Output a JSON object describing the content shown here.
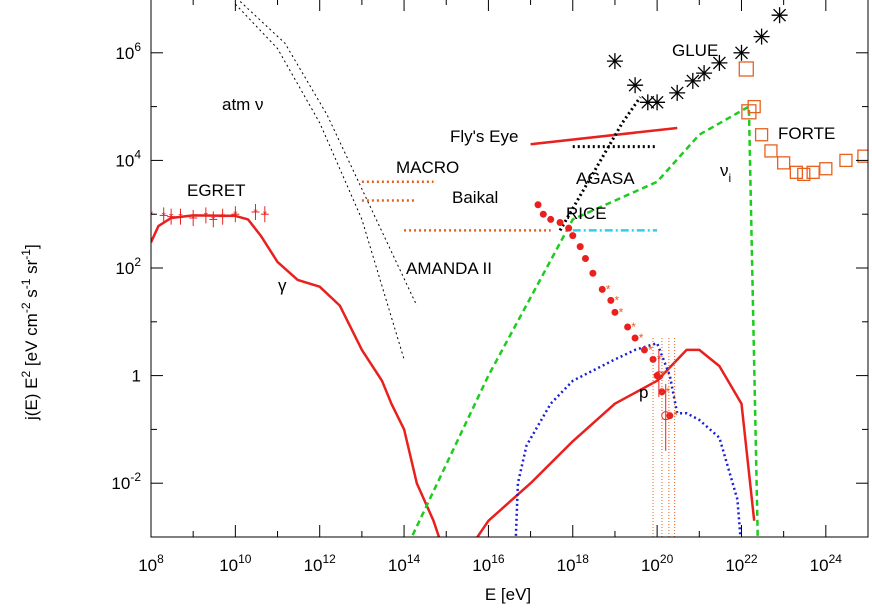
{
  "chart_data": {
    "type": "line",
    "title": "",
    "xlabel": "E [eV]",
    "ylabel": "j(E) E^2 [eV cm^-2 s^-1 sr^-1]",
    "xscale": "log",
    "yscale": "log",
    "xlim": [
      100000000.0,
      1e+25
    ],
    "ylim": [
      0.001,
      10000000
    ],
    "grid": false,
    "x_ticks": [
      {
        "base": "10",
        "exp": "8",
        "value": 100000000.0
      },
      {
        "base": "10",
        "exp": "10",
        "value": 10000000000.0
      },
      {
        "base": "10",
        "exp": "12",
        "value": 1000000000000.0
      },
      {
        "base": "10",
        "exp": "14",
        "value": 100000000000000.0
      },
      {
        "base": "10",
        "exp": "16",
        "value": 1e+16
      },
      {
        "base": "10",
        "exp": "18",
        "value": 1e+18
      },
      {
        "base": "10",
        "exp": "20",
        "value": 1e+20
      },
      {
        "base": "10",
        "exp": "22",
        "value": 1e+22
      },
      {
        "base": "10",
        "exp": "24",
        "value": 1e+24
      }
    ],
    "y_ticks": [
      {
        "base": "10",
        "exp": "-2",
        "value": 0.01
      },
      {
        "base": "1",
        "exp": "",
        "value": 1
      },
      {
        "base": "10",
        "exp": "2",
        "value": 100
      },
      {
        "base": "10",
        "exp": "4",
        "value": 10000
      },
      {
        "base": "10",
        "exp": "6",
        "value": 1000000
      }
    ],
    "series": [
      {
        "label": "γ",
        "style": "solid",
        "color": "#e8201e",
        "points": [
          [
            100000000.0,
            300
          ],
          [
            150000000.0,
            600
          ],
          [
            300000000.0,
            850
          ],
          [
            1000000000.0,
            950
          ],
          [
            10000000000.0,
            930
          ],
          [
            20000000000.0,
            800
          ],
          [
            40000000000.0,
            400
          ],
          [
            100000000000.0,
            130
          ],
          [
            300000000000.0,
            60
          ],
          [
            1000000000000.0,
            45
          ],
          [
            3000000000000.0,
            20
          ],
          [
            10000000000000.0,
            3
          ],
          [
            30000000000000.0,
            0.8
          ],
          [
            50000000000000.0,
            0.3
          ],
          [
            100000000000000.0,
            0.1
          ],
          [
            200000000000000.0,
            0.01
          ],
          [
            500000000000000.0,
            0.002
          ],
          [
            1000000000000000.0,
            0.0004
          ],
          [
            3000000000000000.0,
            0.0005
          ],
          [
            1e+16,
            0.002
          ],
          [
            1e+17,
            0.01
          ],
          [
            1e+18,
            0.06
          ],
          [
            1e+19,
            0.3
          ],
          [
            1e+20,
            0.8
          ],
          [
            5e+20,
            3
          ],
          [
            1e+21,
            3
          ],
          [
            3e+21,
            1.5
          ],
          [
            1e+22,
            0.3
          ],
          [
            2e+22,
            0.002
          ]
        ]
      },
      {
        "label": "p",
        "style": "dotted",
        "color": "#1a1fd6",
        "points": [
          [
            4e+16,
            0.0001
          ],
          [
            5e+16,
            0.01
          ],
          [
            8e+16,
            0.05
          ],
          [
            3e+17,
            0.3
          ],
          [
            1e+18,
            0.8
          ],
          [
            1e+19,
            2
          ],
          [
            3e+19,
            3
          ],
          [
            1e+20,
            4
          ],
          [
            2e+20,
            1
          ],
          [
            3e+20,
            0.2
          ],
          [
            5e+20,
            0.2
          ],
          [
            1e+21,
            0.15
          ],
          [
            3e+21,
            0.07
          ],
          [
            8e+21,
            0.005
          ],
          [
            1.2e+22,
            0.0001
          ]
        ]
      },
      {
        "label": "ν",
        "style": "dashed",
        "color": "#1ecb1e",
        "points": [
          [
            100000000000000.0,
            0.0005
          ],
          [
            1e+16,
            1
          ],
          [
            1e+18,
            800
          ],
          [
            1e+20,
            4000
          ],
          [
            1e+21,
            30000
          ],
          [
            1.5e+22,
            100000
          ],
          [
            2.5e+22,
            0.0003
          ]
        ]
      },
      {
        "label": "atm ν",
        "style": "dotted",
        "color": "#000000",
        "points": [
          [
            10000000000.0,
            8000000
          ],
          [
            100000000000.0,
            1200000
          ],
          [
            1000000000000.0,
            50000
          ],
          [
            10000000000000.0,
            800
          ],
          [
            100000000000000.0,
            2
          ]
        ]
      },
      {
        "label": "atm ν",
        "style": "dotted",
        "color": "#000000",
        "points": [
          [
            13000000000.0,
            9000000
          ],
          [
            150000000000.0,
            1500000
          ],
          [
            1500000000000.0,
            70000
          ],
          [
            15000000000000.0,
            1500
          ],
          [
            200000000000000.0,
            20
          ]
        ]
      }
    ],
    "limits": [
      {
        "label": "MACRO",
        "style": "dotted",
        "color": "#e8601e",
        "x": [
          10000000000000.0,
          500000000000000.0
        ],
        "y": 4000
      },
      {
        "label": "Baikal",
        "style": "dotted",
        "color": "#e8601e",
        "x": [
          10000000000000.0,
          200000000000000.0
        ],
        "y": 1800
      },
      {
        "label": "AMANDA II",
        "style": "dotted",
        "color": "#e8601e",
        "x": [
          100000000000000.0,
          3e+17
        ],
        "y": 500
      },
      {
        "label": "RICE",
        "style": "dash-dot",
        "color": "#2fd0e8",
        "x": [
          1e+18,
          1e+20
        ],
        "y": 500
      },
      {
        "label": "Fly's Eye",
        "style": "solid",
        "color": "#e8201e",
        "x": [
          1e+17,
          3e+20
        ],
        "y": [
          20000,
          40000
        ]
      },
      {
        "label": "AGASA",
        "style": "dotted",
        "color": "#000000",
        "x": [
          1e+18,
          1e+20
        ],
        "y": 18000
      }
    ],
    "glue": {
      "label": "GLUE",
      "color": "#000000",
      "points": [
        [
          1e+19,
          700000
        ],
        [
          3e+19,
          250000
        ],
        [
          6e+19,
          120000
        ],
        [
          1e+20,
          120000
        ],
        [
          3e+20,
          180000
        ],
        [
          7e+20,
          300000
        ],
        [
          1.3e+21,
          420000
        ],
        [
          3e+21,
          650000
        ],
        [
          1e+22,
          1000000
        ],
        [
          3e+22,
          2000000
        ],
        [
          8e+22,
          5000000
        ]
      ]
    },
    "forte": {
      "label": "FORTE",
      "color": "#e8601e",
      "points": [
        [
          2e+22,
          100000
        ],
        [
          3e+22,
          30000
        ],
        [
          5e+22,
          15000
        ],
        [
          1e+23,
          9000
        ],
        [
          2e+23,
          6000
        ],
        [
          3e+23,
          5500
        ],
        [
          5e+23,
          6000
        ],
        [
          1e+24,
          7000
        ],
        [
          3e+24,
          10000
        ],
        [
          8e+24,
          12000
        ]
      ]
    },
    "egret": {
      "label": "EGRET",
      "color": "#e8201e",
      "points": [
        [
          100000000.0,
          1000
        ],
        [
          200000000.0,
          950
        ],
        [
          300000000.0,
          900
        ],
        [
          500000000.0,
          900
        ],
        [
          1000000000.0,
          850
        ],
        [
          2000000000.0,
          950
        ],
        [
          3000000000.0,
          800
        ],
        [
          5000000000.0,
          900
        ],
        [
          10000000000.0,
          1000
        ],
        [
          30000000000.0,
          1100
        ],
        [
          50000000000.0,
          1000
        ]
      ]
    },
    "cr_data": {
      "color": "#e8201e",
      "points": [
        [
          1.5e+17,
          1500
        ],
        [
          2e+17,
          1000
        ],
        [
          3e+17,
          800
        ],
        [
          5e+17,
          700
        ],
        [
          8e+17,
          550
        ],
        [
          1e+18,
          400
        ],
        [
          1.5e+18,
          250
        ],
        [
          2e+18,
          150
        ],
        [
          3e+18,
          80
        ],
        [
          5e+18,
          40
        ],
        [
          8e+18,
          25
        ],
        [
          1e+19,
          15
        ],
        [
          2e+19,
          8
        ],
        [
          3e+19,
          5
        ],
        [
          5e+19,
          3
        ],
        [
          8e+19,
          2
        ],
        [
          1e+20,
          1
        ],
        [
          1.3e+20,
          0.5
        ],
        [
          2e+20,
          0.18
        ]
      ]
    },
    "annotations": [
      "atm ν",
      "γ",
      "EGRET",
      "MACRO",
      "Baikal",
      "AMANDA II",
      "Fly's Eye",
      "AGASA",
      "RICE",
      "GLUE",
      "FORTE",
      "νi",
      "p"
    ],
    "legend_placement": "none"
  },
  "labels": {
    "xlabel": "E [eV]",
    "ylabel_prefix": "j(E) E",
    "ylabel_unit_a": "[eV cm",
    "ylabel_unit_b": "s",
    "ylabel_unit_c": "sr",
    "ylabel_exp_a": "-2",
    "ylabel_exp_b": "-1",
    "ylabel_exp_c": "-1",
    "ylabel_sq": "2",
    "atm_nu": "atm ν",
    "gamma": "γ",
    "egret": "EGRET",
    "macro": "MACRO",
    "baikal": "Baikal",
    "amanda": "AMANDA II",
    "flyseye": "Fly's Eye",
    "agasa": "AGASA",
    "rice": "RICE",
    "glue": "GLUE",
    "forte": "FORTE",
    "nu_i": "ν",
    "nu_i_sub": "i",
    "proton": "p"
  }
}
